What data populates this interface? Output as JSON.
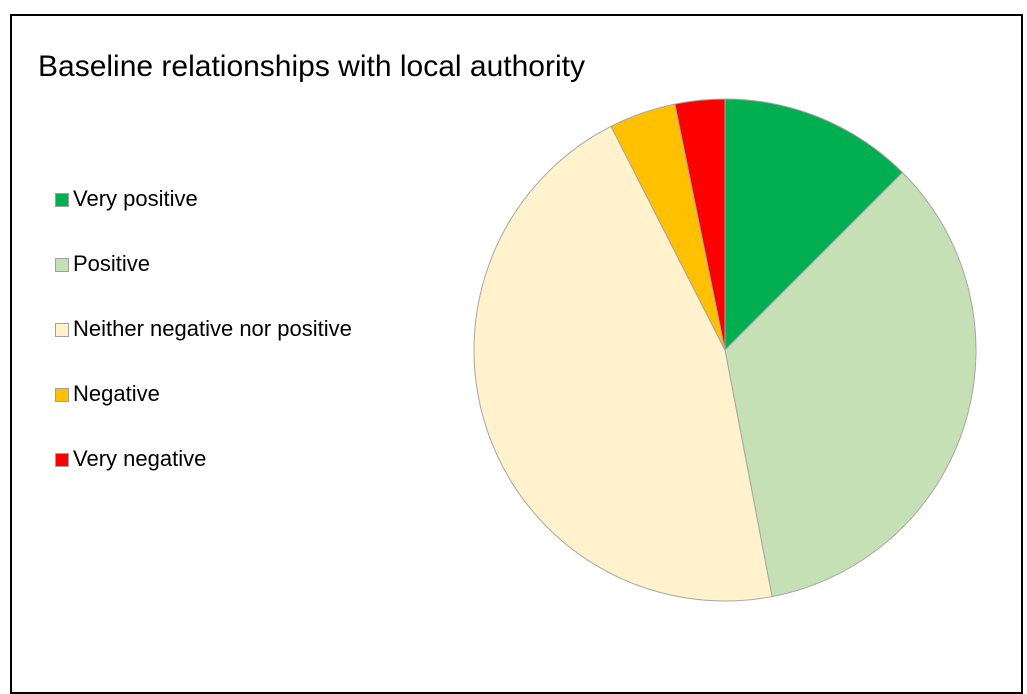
{
  "chart_data": {
    "type": "pie",
    "title": "Baseline relationships with local authority",
    "legend_position": "left",
    "slices": [
      {
        "label": "Very positive",
        "value": 12.5,
        "color": "#00b050"
      },
      {
        "label": "Positive",
        "value": 34.5,
        "color": "#c5e0b4"
      },
      {
        "label": "Neither negative nor positive",
        "value": 45.5,
        "color": "#fff2cc"
      },
      {
        "label": "Negative",
        "value": 4.3,
        "color": "#ffc000"
      },
      {
        "label": "Very negative",
        "value": 3.2,
        "color": "#ff0000"
      }
    ]
  }
}
